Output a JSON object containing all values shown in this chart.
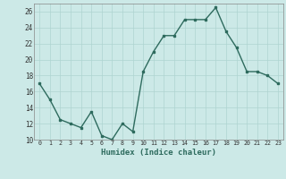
{
  "x": [
    0,
    1,
    2,
    3,
    4,
    5,
    6,
    7,
    8,
    9,
    10,
    11,
    12,
    13,
    14,
    15,
    16,
    17,
    18,
    19,
    20,
    21,
    22,
    23
  ],
  "y": [
    17,
    15,
    12.5,
    12,
    11.5,
    13.5,
    10.5,
    10,
    12,
    11,
    18.5,
    21,
    23,
    23,
    25,
    25,
    25,
    26.5,
    23.5,
    21.5,
    18.5,
    18.5,
    18,
    17
  ],
  "xlabel": "Humidex (Indice chaleur)",
  "ylim": [
    10,
    27
  ],
  "yticks": [
    10,
    12,
    14,
    16,
    18,
    20,
    22,
    24,
    26
  ],
  "xticks": [
    0,
    1,
    2,
    3,
    4,
    5,
    6,
    7,
    8,
    9,
    10,
    11,
    12,
    13,
    14,
    15,
    16,
    17,
    18,
    19,
    20,
    21,
    22,
    23
  ],
  "line_color": "#2e6b5e",
  "bg_color": "#cce9e7",
  "grid_color": "#aed4d1",
  "marker_size": 2.0,
  "line_width": 1.0
}
